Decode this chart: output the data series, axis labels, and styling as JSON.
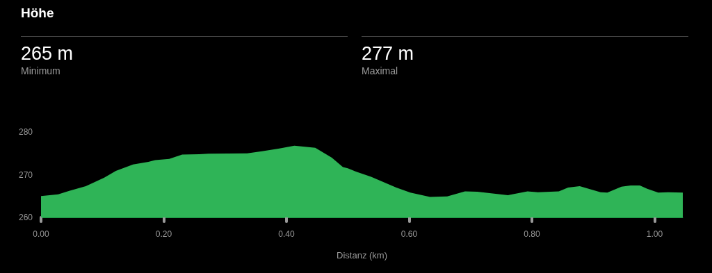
{
  "chart_data": {
    "type": "area",
    "title": "Höhe",
    "annotations": [
      "265 m",
      "Minimum",
      "277 m",
      "Maximal"
    ],
    "xlabel": "Distanz (km)",
    "x": [
      0.0,
      0.028,
      0.046,
      0.073,
      0.103,
      0.122,
      0.15,
      0.175,
      0.186,
      0.209,
      0.23,
      0.258,
      0.273,
      0.336,
      0.36,
      0.387,
      0.413,
      0.447,
      0.474,
      0.492,
      0.5,
      0.514,
      0.538,
      0.579,
      0.602,
      0.634,
      0.662,
      0.691,
      0.711,
      0.761,
      0.768,
      0.793,
      0.81,
      0.844,
      0.859,
      0.878,
      0.912,
      0.923,
      0.946,
      0.961,
      0.976,
      0.988,
      1.006,
      1.022,
      1.046
    ],
    "series": [
      {
        "color": "#2fb457",
        "values": [
          265.0,
          265.4,
          266.2,
          267.3,
          269.3,
          270.9,
          272.4,
          273.0,
          273.4,
          273.7,
          274.7,
          274.8,
          274.9,
          275.0,
          275.5,
          276.1,
          276.8,
          276.3,
          274.0,
          271.8,
          271.5,
          270.7,
          269.5,
          267.0,
          265.8,
          264.8,
          264.9,
          266.1,
          266.0,
          265.2,
          265.4,
          266.1,
          265.9,
          266.1,
          267.0,
          267.3,
          265.9,
          265.8,
          267.2,
          267.5,
          267.5,
          266.7,
          265.8,
          265.9,
          265.8
        ]
      }
    ],
    "xticks": [
      {
        "value": 0,
        "label": "0.00"
      },
      {
        "value": 0.2,
        "label": "0.20"
      },
      {
        "value": 0.4,
        "label": "0.40"
      },
      {
        "value": 0.6,
        "label": "0.60"
      },
      {
        "value": 0.8,
        "label": "0.80"
      },
      {
        "value": 1.0,
        "label": "1.00"
      }
    ],
    "xlim": [
      0,
      1.046
    ],
    "ylim": [
      260,
      280
    ],
    "yticks": [
      260,
      270,
      280
    ],
    "grid": false
  }
}
